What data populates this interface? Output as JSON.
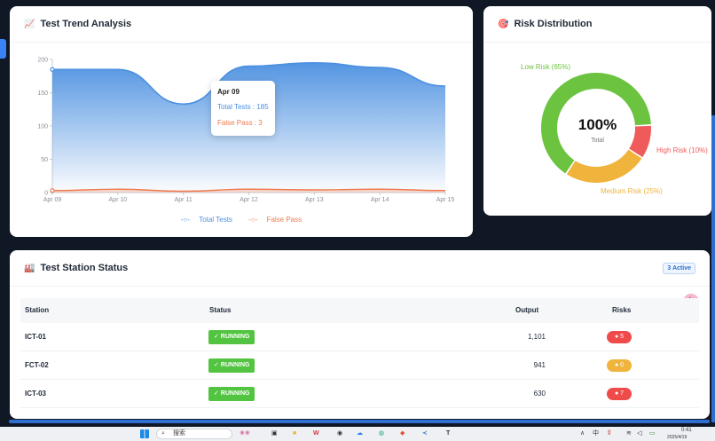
{
  "trend": {
    "title": "Test Trend Analysis",
    "icon": "chart-icon",
    "tooltip": {
      "date": "Apr 09",
      "total": "Total Tests : 185",
      "false_pass": "False Pass : 3"
    },
    "legend": [
      "Total Tests",
      "False Pass"
    ]
  },
  "chart_data": [
    {
      "type": "area",
      "title": "",
      "categories": [
        "Apr 09",
        "Apr 10",
        "Apr 11",
        "Apr 12",
        "Apr 13",
        "Apr 14",
        "Apr 15"
      ],
      "series": [
        {
          "name": "Total Tests",
          "values": [
            185,
            185,
            133,
            190,
            195,
            188,
            160
          ],
          "color": "#4a8fe0"
        },
        {
          "name": "False Pass",
          "values": [
            3,
            5,
            2,
            5,
            4,
            5,
            3
          ],
          "color": "#ee7a4f"
        }
      ],
      "yticks": [
        "0",
        "50",
        "100",
        "150",
        "200"
      ],
      "ylim": [
        0,
        200
      ],
      "grid": false,
      "legend_position": "bottom"
    },
    {
      "type": "pie",
      "title": "Risk Distribution",
      "slices": [
        {
          "label": "Low Risk (65%)",
          "value": 65,
          "color": "#6cc33f"
        },
        {
          "label": "High Risk (10%)",
          "value": 10,
          "color": "#ef5b5b"
        },
        {
          "label": "Medium Risk (25%)",
          "value": 25,
          "color": "#f0b43c"
        }
      ],
      "center_value": "100%",
      "center_label": "Total"
    }
  ],
  "risk": {
    "title": "Risk Distribution",
    "icon": "target-icon"
  },
  "stations": {
    "title": "Test Station Status",
    "icon": "factory-icon",
    "active_badge": "3 Active",
    "headers": [
      "Station",
      "Status",
      "Output",
      "Risks"
    ],
    "rows": [
      {
        "station": "ICT-01",
        "status": "✓ RUNNING",
        "output": "1,101",
        "risk": "5",
        "risk_color": "#ef4b4b"
      },
      {
        "station": "FCT-02",
        "status": "✓ RUNNING",
        "output": "941",
        "risk": "0",
        "risk_color": "#f0b43c"
      },
      {
        "station": "ICT-03",
        "status": "✓ RUNNING",
        "output": "630",
        "risk": "7",
        "risk_color": "#ef4b4b"
      }
    ]
  },
  "taskbar": {
    "search_placeholder": "搜索",
    "lang": "中",
    "time": "0:41",
    "date": "2025/4/19"
  }
}
